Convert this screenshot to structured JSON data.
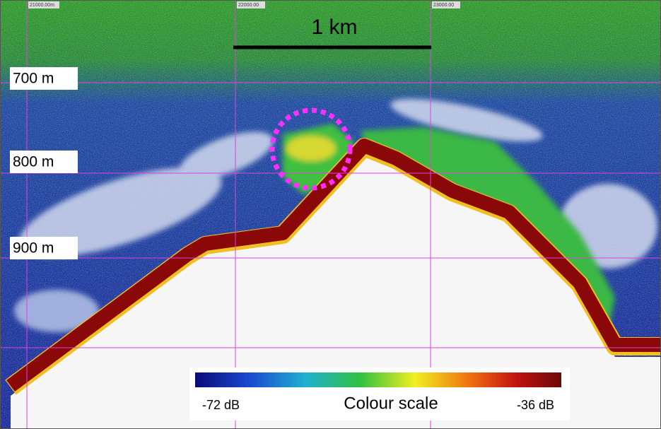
{
  "echogram": {
    "ruler_labels": [
      "21000.00m",
      "22000.00",
      "23000.00"
    ],
    "depth_labels": [
      "700 m",
      "800 m",
      "900 m"
    ],
    "scale_bar": "1 km",
    "colour_scale": {
      "min_label": "-72 dB",
      "title": "Colour scale",
      "max_label": "-36 dB"
    }
  }
}
